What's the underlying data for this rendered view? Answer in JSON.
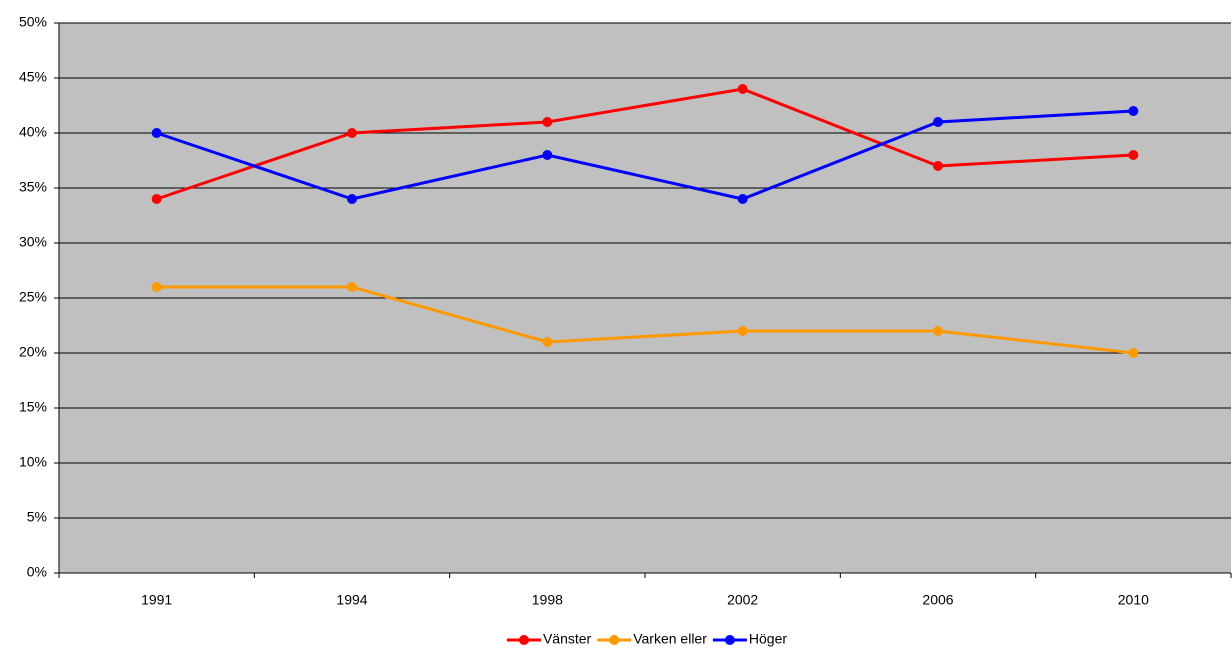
{
  "chart_data": {
    "type": "line",
    "categories": [
      "1991",
      "1994",
      "1998",
      "2002",
      "2006",
      "2010"
    ],
    "series": [
      {
        "name": "Vänster",
        "color": "#ff0000",
        "values": [
          34,
          40,
          41,
          44,
          37,
          38
        ]
      },
      {
        "name": "Varken eller",
        "color": "#ff9900",
        "values": [
          26,
          26,
          21,
          22,
          22,
          20
        ]
      },
      {
        "name": "Höger",
        "color": "#0000ff",
        "values": [
          40,
          34,
          38,
          34,
          41,
          42
        ]
      }
    ],
    "ylim": [
      0,
      50
    ],
    "yticks": [
      {
        "value": 0,
        "label": "0%"
      },
      {
        "value": 5,
        "label": "5%"
      },
      {
        "value": 10,
        "label": "10%"
      },
      {
        "value": 15,
        "label": "15%"
      },
      {
        "value": 20,
        "label": "20%"
      },
      {
        "value": 25,
        "label": "25%"
      },
      {
        "value": 30,
        "label": "30%"
      },
      {
        "value": 35,
        "label": "35%"
      },
      {
        "value": 40,
        "label": "40%"
      },
      {
        "value": 45,
        "label": "45%"
      },
      {
        "value": 50,
        "label": "50%"
      }
    ],
    "grid": true,
    "plot_background": "#c0c0c0",
    "legend": "bottom"
  }
}
